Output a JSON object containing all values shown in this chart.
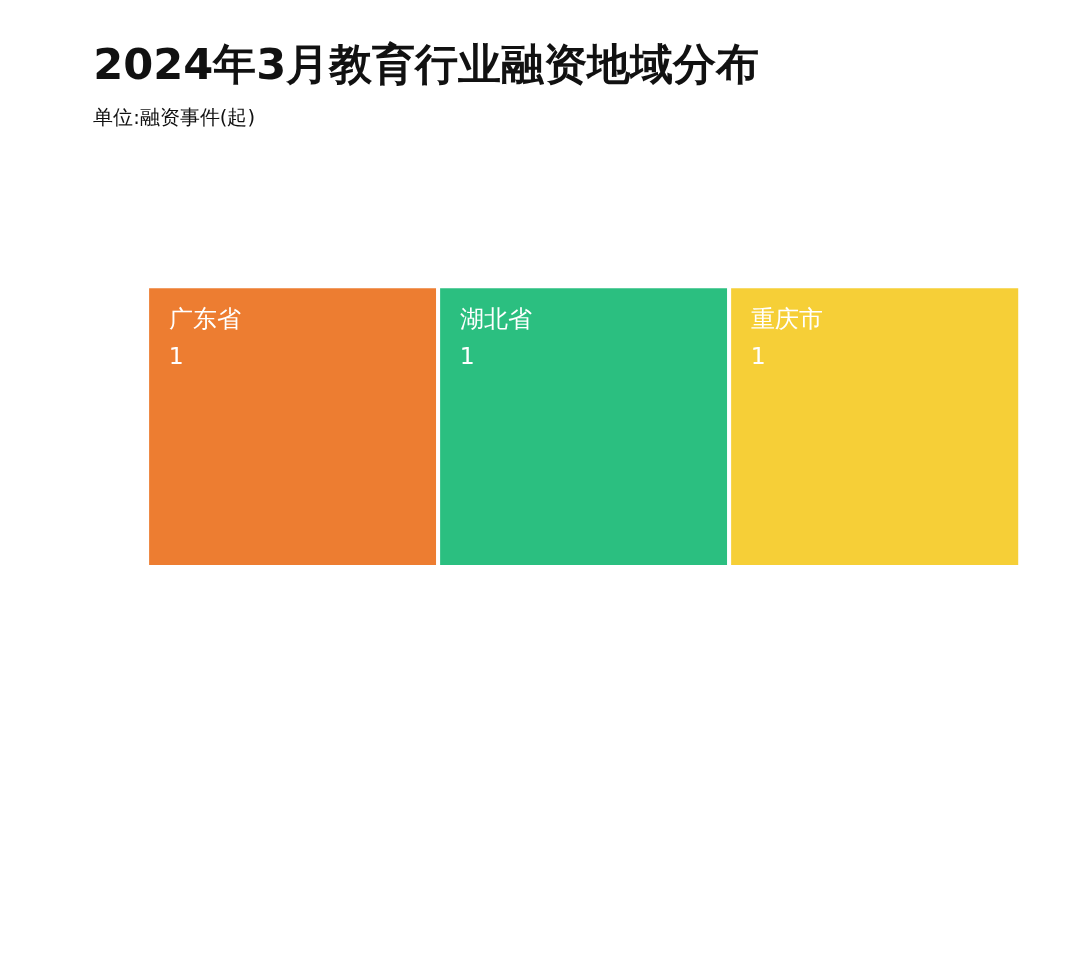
{
  "chart_data": {
    "type": "other",
    "title": "2024年3月教育行业融资地域分布",
    "subtitle": "单位:融资事件(起)",
    "categories": [
      "广东省",
      "湖北省",
      "重庆市"
    ],
    "values": [
      1,
      1,
      1
    ],
    "colors": [
      "#ed7d31",
      "#2bbf80",
      "#f6cf37"
    ],
    "data_labels": true
  }
}
